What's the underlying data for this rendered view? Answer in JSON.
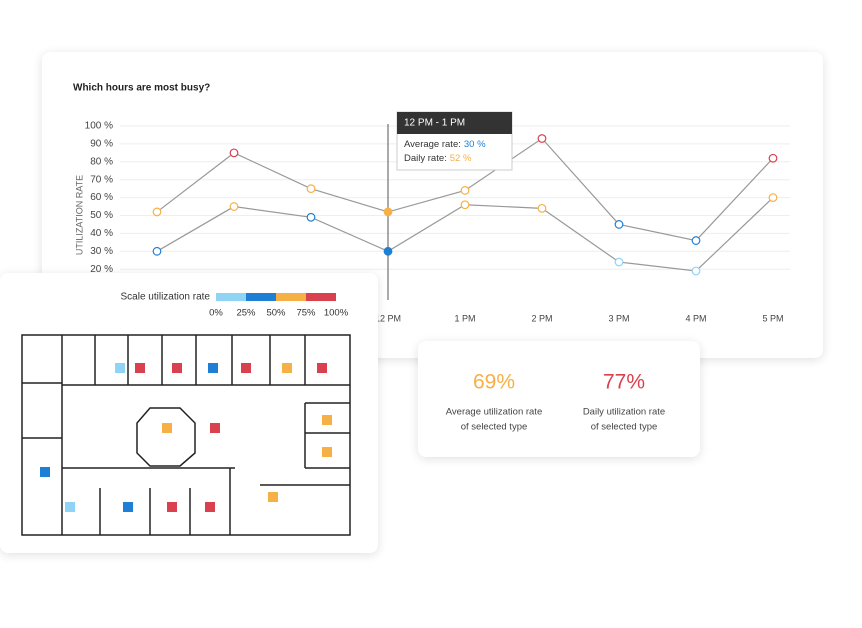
{
  "chart_data": {
    "type": "line",
    "title": "Which hours are most busy?",
    "y_label": "UTILIZATION RATE",
    "categories": [
      null,
      null,
      null,
      "12 PM",
      "1 PM",
      "2 PM",
      "3 PM",
      "4 PM",
      "5 PM"
    ],
    "series": [
      {
        "name": "Average rate:",
        "color": "#999999",
        "values": [
          30,
          55,
          49,
          30,
          56,
          54,
          24,
          19,
          60
        ]
      },
      {
        "name": "Daily rate:",
        "color": "#999999",
        "values": [
          52,
          85,
          65,
          52,
          64,
          93,
          45,
          36,
          82
        ]
      }
    ],
    "ylim": [
      0,
      100
    ],
    "yticks": [
      {
        "value": 20,
        "label": "20 %"
      },
      {
        "value": 30,
        "label": "30 %"
      },
      {
        "value": 40,
        "label": "40 %"
      },
      {
        "value": 50,
        "label": "50 %"
      },
      {
        "value": 60,
        "label": "60 %"
      },
      {
        "value": 70,
        "label": "70 %"
      },
      {
        "value": 80,
        "label": "80 %"
      },
      {
        "value": 90,
        "label": "90 %"
      },
      {
        "value": 100,
        "label": "100 %"
      }
    ],
    "grid": true,
    "tooltip": {
      "title": "12 PM - 1 PM",
      "values": [
        "30 %",
        "52 %"
      ],
      "colors": [
        "#1f7fd4",
        "#f7b046"
      ]
    }
  },
  "scale": {
    "title": "Scale utilization rate",
    "ticks": [
      {
        "value": 0,
        "label": "0%"
      },
      {
        "value": 25,
        "label": "25%"
      },
      {
        "value": 50,
        "label": "50%"
      },
      {
        "value": 75,
        "label": "75%"
      },
      {
        "value": 100,
        "label": "100%"
      }
    ],
    "colors": [
      "#8fd3f5",
      "#1f7fd4",
      "#f7b046",
      "#d9414f"
    ]
  },
  "kpis": [
    {
      "value": "69%",
      "label_1": "Average utilization rate",
      "label_2": "of selected type",
      "color": "#f7b046"
    },
    {
      "value": "77%",
      "label_1": "Daily utilization rate",
      "label_2": "of selected type",
      "color": "#d9414f"
    }
  ]
}
